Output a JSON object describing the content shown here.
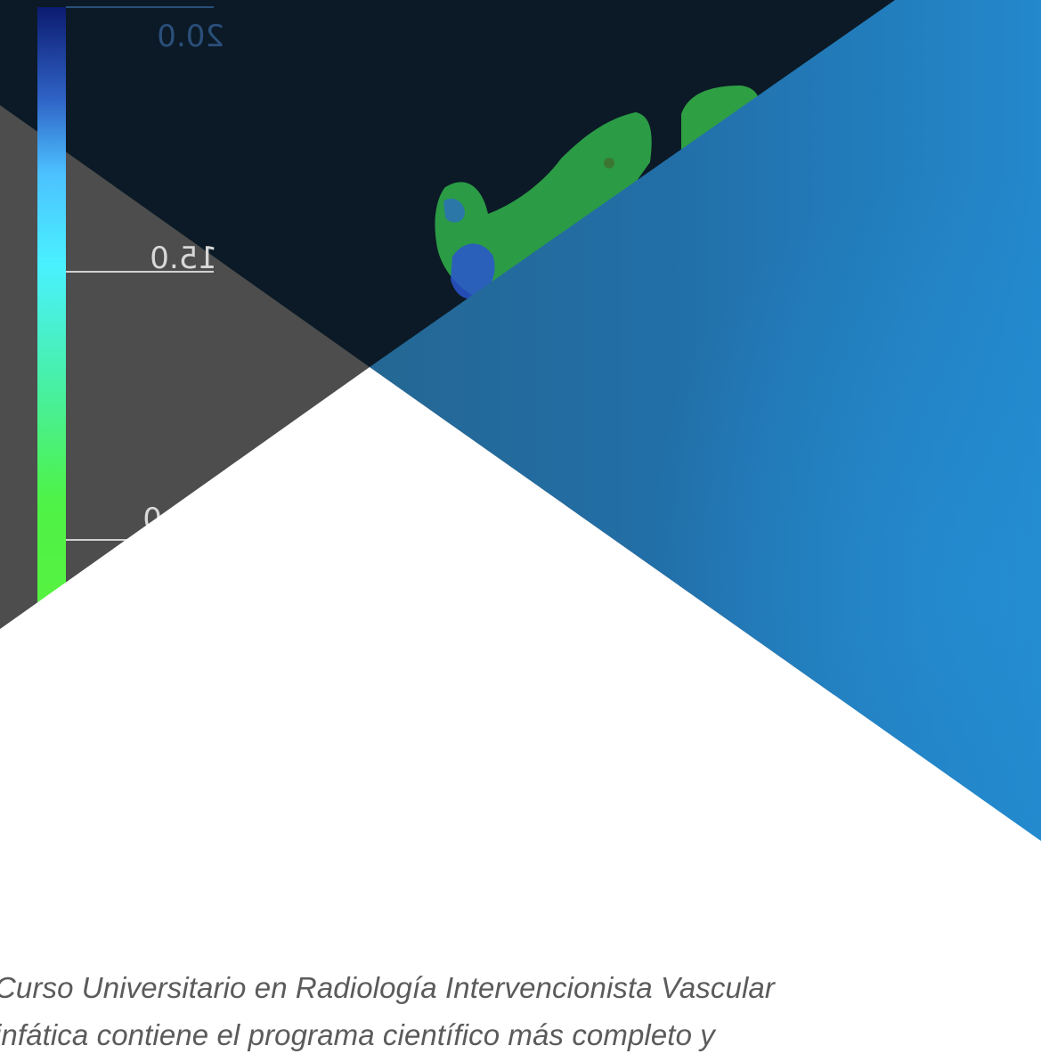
{
  "hero_image": {
    "alt": "",
    "scale_labels": [
      "20.0",
      "15.0",
      "0"
    ],
    "colors": {
      "dark": "#0b1a26",
      "grey_panel": "#4d4d4d",
      "blue_start": "#246794",
      "blue_end": "#2388cc",
      "scale_green": "#4ef248",
      "scale_cyan": "#4cf0ff",
      "scale_blue": "#4a99e3",
      "scale_navy": "#0c1b70"
    }
  },
  "caption": {
    "line_1": "Curso Universitario en Radiología Intervencionista Vascular",
    "line_2": "infática contiene el programa científico más completo y"
  }
}
